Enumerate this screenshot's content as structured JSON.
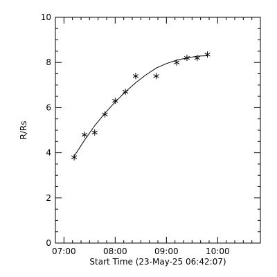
{
  "chart_data": {
    "type": "scatter",
    "title": "",
    "xlabel": "Start Time (23-May-25 06:42:07)",
    "ylabel": "R/Rs",
    "x_unit": "time of day",
    "xlim": [
      "06:50",
      "10:50"
    ],
    "ylim": [
      0,
      10
    ],
    "x_ticks": [
      "07:00",
      "08:00",
      "09:00",
      "10:00"
    ],
    "y_ticks": [
      "0",
      "2",
      "4",
      "6",
      "8",
      "10"
    ],
    "grid": false,
    "legend": "none",
    "series": [
      {
        "marker": "asterisk",
        "x": [
          "07:12",
          "07:24",
          "07:36",
          "07:48",
          "08:00",
          "08:12",
          "08:24",
          "08:48",
          "09:12",
          "09:24",
          "09:36",
          "09:48"
        ],
        "y": [
          3.8,
          4.8,
          4.9,
          5.7,
          6.3,
          6.7,
          7.4,
          7.4,
          8.0,
          8.2,
          8.2,
          8.35
        ]
      }
    ],
    "fit_curve": {
      "style": "solid line",
      "x": [
        "07:12",
        "07:24",
        "07:36",
        "07:48",
        "08:00",
        "08:12",
        "08:24",
        "08:36",
        "08:48",
        "09:00",
        "09:12",
        "09:24",
        "09:36",
        "09:48"
      ],
      "y": [
        3.85,
        4.55,
        5.2,
        5.75,
        6.25,
        6.7,
        7.1,
        7.45,
        7.75,
        7.95,
        8.1,
        8.2,
        8.28,
        8.3
      ]
    }
  }
}
